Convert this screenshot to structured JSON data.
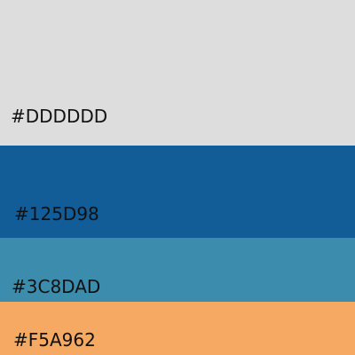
{
  "swatches": [
    {
      "color": "#DDDDDD",
      "label": "#DDDDDD"
    },
    {
      "color": "#125D98",
      "label": "#125D98"
    },
    {
      "color": "#3C8DAD",
      "label": "#3C8DAD"
    },
    {
      "color": "#F5A962",
      "label": "#F5A962"
    }
  ]
}
